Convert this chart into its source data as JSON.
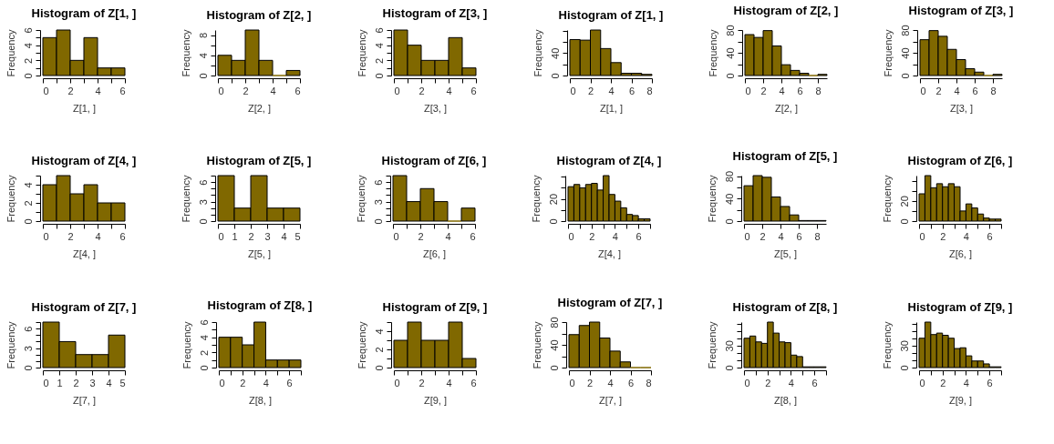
{
  "chart_data": [
    {
      "type": "histogram",
      "title": "Histogram of Z[1, ]",
      "xlabel": "Z[1, ]",
      "ylabel": "Frequency",
      "color": "#806800",
      "bins": [
        0,
        1,
        2,
        3,
        4,
        5,
        6
      ],
      "values": [
        5,
        6,
        2,
        5,
        1,
        1
      ],
      "xlim": [
        0,
        6
      ],
      "xticks": [
        0,
        {
          "value": 1,
          "label": null
        },
        2,
        {
          "value": 3,
          "label": null
        },
        4,
        {
          "value": 5,
          "label": null
        },
        6
      ],
      "ylim": [
        0,
        6
      ],
      "yticks": [
        0,
        {
          "value": 1,
          "label": null
        },
        2,
        {
          "value": 3,
          "label": null
        },
        4,
        {
          "value": 5,
          "label": null
        },
        6
      ]
    },
    {
      "type": "histogram",
      "title": "Histogram of Z[2, ]",
      "xlabel": "Z[2, ]",
      "ylabel": "Frequency",
      "color": "#806800",
      "bins": [
        0,
        1,
        2,
        3,
        4,
        5,
        6
      ],
      "values": [
        4,
        3,
        9,
        3,
        0,
        1
      ],
      "xlim": [
        0,
        6
      ],
      "xticks": [
        0,
        {
          "value": 1,
          "label": null
        },
        2,
        {
          "value": 3,
          "label": null
        },
        4,
        {
          "value": 5,
          "label": null
        },
        6
      ],
      "ylim": [
        0,
        9
      ],
      "yticks": [
        0,
        {
          "value": 2,
          "label": null
        },
        4,
        {
          "value": 6,
          "label": null
        },
        8
      ]
    },
    {
      "type": "histogram",
      "title": "Histogram of Z[3, ]",
      "xlabel": "Z[3, ]",
      "ylabel": "Frequency",
      "color": "#806800",
      "bins": [
        0,
        1,
        2,
        3,
        4,
        5,
        6
      ],
      "values": [
        6,
        4,
        2,
        2,
        5,
        1
      ],
      "xlim": [
        0,
        6
      ],
      "xticks": [
        0,
        {
          "value": 1,
          "label": null
        },
        2,
        {
          "value": 3,
          "label": null
        },
        4,
        {
          "value": 5,
          "label": null
        },
        6
      ],
      "ylim": [
        0,
        6
      ],
      "yticks": [
        0,
        {
          "value": 1,
          "label": null
        },
        2,
        {
          "value": 3,
          "label": null
        },
        4,
        {
          "value": 5,
          "label": null
        },
        6
      ]
    },
    {
      "type": "histogram",
      "title": "Histogram of Z[1, ]",
      "xlabel": "Z[1, ]",
      "ylabel": "Frequency",
      "color": "#806800",
      "bins": [
        0,
        1,
        2,
        3,
        4,
        5,
        6,
        7,
        8
      ],
      "values": [
        64,
        63,
        81,
        48,
        23,
        4,
        4,
        2
      ],
      "xlim": [
        0,
        8
      ],
      "xticks": [
        0,
        2,
        4,
        6,
        8
      ],
      "ylim": [
        0,
        81
      ],
      "yticks": [
        0,
        {
          "value": 20,
          "label": null
        },
        40,
        {
          "value": 60,
          "label": null
        },
        {
          "value": 80,
          "label": null
        }
      ]
    },
    {
      "type": "histogram",
      "title": "Histogram of Z[2, ]",
      "xlabel": "Z[2, ]",
      "ylabel": "Frequency",
      "color": "#806800",
      "bins": [
        0,
        1,
        2,
        3,
        4,
        5,
        6,
        7,
        8,
        9
      ],
      "values": [
        72,
        67,
        79,
        52,
        19,
        9,
        4,
        0,
        2
      ],
      "xlim": [
        0,
        9
      ],
      "xticks": [
        0,
        2,
        4,
        6,
        8
      ],
      "ylim": [
        0,
        80
      ],
      "yticks": [
        0,
        {
          "value": 20,
          "label": null
        },
        40,
        {
          "value": 60,
          "label": null
        },
        80
      ]
    },
    {
      "type": "histogram",
      "title": "Histogram of Z[3, ]",
      "xlabel": "Z[3, ]",
      "ylabel": "Frequency",
      "color": "#806800",
      "bins": [
        0,
        1,
        2,
        3,
        4,
        5,
        6,
        7,
        8,
        9
      ],
      "values": [
        63,
        79,
        69,
        46,
        28,
        12,
        6,
        0,
        2
      ],
      "xlim": [
        0,
        9
      ],
      "xticks": [
        0,
        2,
        4,
        6,
        8
      ],
      "ylim": [
        0,
        80
      ],
      "yticks": [
        0,
        {
          "value": 20,
          "label": null
        },
        40,
        {
          "value": 60,
          "label": null
        },
        80
      ]
    },
    {
      "type": "histogram",
      "title": "Histogram of Z[4, ]",
      "xlabel": "Z[4, ]",
      "ylabel": "Frequency",
      "color": "#806800",
      "bins": [
        0,
        1,
        2,
        3,
        4,
        5,
        6
      ],
      "values": [
        4,
        5,
        3,
        4,
        2,
        2
      ],
      "xlim": [
        0,
        6
      ],
      "xticks": [
        0,
        {
          "value": 1,
          "label": null
        },
        2,
        {
          "value": 3,
          "label": null
        },
        4,
        {
          "value": 5,
          "label": null
        },
        6
      ],
      "ylim": [
        0,
        5
      ],
      "yticks": [
        0,
        {
          "value": 1,
          "label": null
        },
        2,
        {
          "value": 3,
          "label": null
        },
        4,
        {
          "value": 5,
          "label": null
        }
      ]
    },
    {
      "type": "histogram",
      "title": "Histogram of Z[5, ]",
      "xlabel": "Z[5, ]",
      "ylabel": "Frequency",
      "color": "#806800",
      "bins": [
        0,
        1,
        2,
        3,
        4,
        5
      ],
      "values": [
        7,
        2,
        7,
        2,
        2
      ],
      "xlim": [
        0,
        5
      ],
      "xticks": [
        0,
        1,
        2,
        3,
        4,
        5
      ],
      "ylim": [
        0,
        7
      ],
      "yticks": [
        0,
        {
          "value": 1,
          "label": null
        },
        {
          "value": 2,
          "label": null
        },
        3,
        {
          "value": 4,
          "label": null
        },
        {
          "value": 5,
          "label": null
        },
        6,
        {
          "value": 7,
          "label": null
        }
      ]
    },
    {
      "type": "histogram",
      "title": "Histogram of Z[6, ]",
      "xlabel": "Z[6, ]",
      "ylabel": "Frequency",
      "color": "#806800",
      "bins": [
        0,
        1,
        2,
        3,
        4,
        5,
        6
      ],
      "values": [
        7,
        3,
        5,
        3,
        0,
        2
      ],
      "xlim": [
        0,
        6
      ],
      "xticks": [
        0,
        {
          "value": 1,
          "label": null
        },
        2,
        {
          "value": 3,
          "label": null
        },
        4,
        {
          "value": 5,
          "label": null
        },
        6
      ],
      "ylim": [
        0,
        7
      ],
      "yticks": [
        0,
        {
          "value": 1,
          "label": null
        },
        {
          "value": 2,
          "label": null
        },
        3,
        {
          "value": 4,
          "label": null
        },
        {
          "value": 5,
          "label": null
        },
        6,
        {
          "value": 7,
          "label": null
        }
      ]
    },
    {
      "type": "histogram",
      "title": "Histogram of Z[4, ]",
      "xlabel": "Z[4, ]",
      "ylabel": "Frequency",
      "color": "#806800",
      "bins": [
        0,
        0.5,
        1,
        1.5,
        2,
        2.5,
        3,
        3.5,
        4,
        4.5,
        5,
        5.5,
        6,
        6.5,
        7
      ],
      "values": [
        31,
        33,
        30,
        33,
        34,
        28,
        41,
        24,
        18,
        12,
        6,
        5,
        2,
        2
      ],
      "xlim": [
        0,
        7
      ],
      "xticks": [
        0,
        {
          "value": 1,
          "label": null
        },
        2,
        {
          "value": 3,
          "label": null
        },
        4,
        {
          "value": 5,
          "label": null
        },
        6,
        {
          "value": 7,
          "label": null
        }
      ],
      "ylim": [
        0,
        41
      ],
      "yticks": [
        0,
        {
          "value": 10,
          "label": null
        },
        20,
        {
          "value": 30,
          "label": null
        },
        {
          "value": 40,
          "label": null
        }
      ]
    },
    {
      "type": "histogram",
      "title": "Histogram of Z[5, ]",
      "xlabel": "Z[5, ]",
      "ylabel": "Frequency",
      "color": "#806800",
      "bins": [
        0,
        1,
        2,
        3,
        4,
        5,
        6,
        7,
        8,
        9
      ],
      "values": [
        63,
        81,
        78,
        43,
        26,
        11,
        1,
        1,
        1
      ],
      "xlim": [
        0,
        9
      ],
      "xticks": [
        0,
        2,
        4,
        6,
        8
      ],
      "ylim": [
        0,
        81
      ],
      "yticks": [
        0,
        {
          "value": 20,
          "label": null
        },
        40,
        {
          "value": 60,
          "label": null
        },
        80
      ]
    },
    {
      "type": "histogram",
      "title": "Histogram of Z[6, ]",
      "xlabel": "Z[6, ]",
      "ylabel": "Frequency",
      "color": "#806800",
      "bins": [
        0,
        0.5,
        1,
        1.5,
        2,
        2.5,
        3,
        3.5,
        4,
        4.5,
        5,
        5.5,
        6,
        6.5,
        7
      ],
      "values": [
        27,
        45,
        33,
        37,
        34,
        37,
        34,
        10,
        17,
        13,
        7,
        3,
        2,
        2
      ],
      "xlim": [
        0,
        7
      ],
      "xticks": [
        0,
        {
          "value": 1,
          "label": null
        },
        2,
        {
          "value": 3,
          "label": null
        },
        4,
        {
          "value": 5,
          "label": null
        },
        6,
        {
          "value": 7,
          "label": null
        }
      ],
      "ylim": [
        0,
        45
      ],
      "yticks": [
        0,
        {
          "value": 10,
          "label": null
        },
        20,
        {
          "value": 30,
          "label": null
        },
        {
          "value": 40,
          "label": null
        }
      ]
    },
    {
      "type": "histogram",
      "title": "Histogram of Z[7, ]",
      "xlabel": "Z[7, ]",
      "ylabel": "Frequency",
      "color": "#806800",
      "bins": [
        0,
        1,
        2,
        3,
        4,
        5
      ],
      "values": [
        7,
        4,
        2,
        2,
        5
      ],
      "xlim": [
        0,
        5
      ],
      "xticks": [
        0,
        1,
        2,
        3,
        4,
        5
      ],
      "ylim": [
        0,
        7
      ],
      "yticks": [
        0,
        {
          "value": 1,
          "label": null
        },
        {
          "value": 2,
          "label": null
        },
        3,
        {
          "value": 4,
          "label": null
        },
        {
          "value": 5,
          "label": null
        },
        6,
        {
          "value": 7,
          "label": null
        }
      ]
    },
    {
      "type": "histogram",
      "title": "Histogram of Z[8, ]",
      "xlabel": "Z[8, ]",
      "ylabel": "Frequency",
      "color": "#806800",
      "bins": [
        0,
        1,
        2,
        3,
        4,
        5,
        6,
        7
      ],
      "values": [
        4,
        4,
        3,
        6,
        1,
        1,
        1
      ],
      "xlim": [
        0,
        7
      ],
      "xticks": [
        0,
        {
          "value": 1,
          "label": null
        },
        2,
        {
          "value": 3,
          "label": null
        },
        4,
        {
          "value": 5,
          "label": null
        },
        6,
        {
          "value": 7,
          "label": null
        }
      ],
      "ylim": [
        0,
        6
      ],
      "yticks": [
        0,
        {
          "value": 1,
          "label": null
        },
        2,
        {
          "value": 3,
          "label": null
        },
        4,
        {
          "value": 5,
          "label": null
        },
        6
      ]
    },
    {
      "type": "histogram",
      "title": "Histogram of Z[9, ]",
      "xlabel": "Z[9, ]",
      "ylabel": "Frequency",
      "color": "#806800",
      "bins": [
        0,
        1,
        2,
        3,
        4,
        5,
        6
      ],
      "values": [
        3,
        5,
        3,
        3,
        5,
        1
      ],
      "xlim": [
        0,
        6
      ],
      "xticks": [
        0,
        {
          "value": 1,
          "label": null
        },
        2,
        {
          "value": 3,
          "label": null
        },
        4,
        {
          "value": 5,
          "label": null
        },
        6
      ],
      "ylim": [
        0,
        5
      ],
      "yticks": [
        0,
        {
          "value": 1,
          "label": null
        },
        2,
        {
          "value": 3,
          "label": null
        },
        4,
        {
          "value": 5,
          "label": null
        }
      ]
    },
    {
      "type": "histogram",
      "title": "Histogram of Z[7, ]",
      "xlabel": "Z[7, ]",
      "ylabel": "Frequency",
      "color": "#806800",
      "bins": [
        0,
        1,
        2,
        3,
        4,
        5,
        6,
        7,
        8
      ],
      "values": [
        58,
        74,
        80,
        52,
        29,
        10,
        0,
        0
      ],
      "xlim": [
        0,
        8
      ],
      "xticks": [
        0,
        2,
        4,
        6,
        8
      ],
      "ylim": [
        0,
        80
      ],
      "yticks": [
        0,
        {
          "value": 20,
          "label": null
        },
        40,
        {
          "value": 60,
          "label": null
        },
        80
      ]
    },
    {
      "type": "histogram",
      "title": "Histogram of Z[8, ]",
      "xlabel": "Z[8, ]",
      "ylabel": "Frequency",
      "color": "#806800",
      "bins": [
        0,
        0.5,
        1,
        1.5,
        2,
        2.5,
        3,
        3.5,
        4,
        4.5,
        5,
        5.5,
        6,
        6.5,
        7
      ],
      "values": [
        40,
        43,
        35,
        33,
        62,
        47,
        35,
        34,
        17,
        15,
        1,
        1,
        1,
        1
      ],
      "xlim": [
        0,
        7
      ],
      "xticks": [
        0,
        {
          "value": 1,
          "label": null
        },
        2,
        {
          "value": 3,
          "label": null
        },
        4,
        {
          "value": 5,
          "label": null
        },
        6,
        {
          "value": 7,
          "label": null
        }
      ],
      "ylim": [
        0,
        62
      ],
      "yticks": [
        0,
        {
          "value": 10,
          "label": null
        },
        {
          "value": 20,
          "label": null
        },
        30,
        {
          "value": 40,
          "label": null
        },
        {
          "value": 50,
          "label": null
        },
        {
          "value": 60,
          "label": null
        }
      ]
    },
    {
      "type": "histogram",
      "title": "Histogram of Z[9, ]",
      "xlabel": "Z[9, ]",
      "ylabel": "Frequency",
      "color": "#806800",
      "bins": [
        0,
        0.5,
        1,
        1.5,
        2,
        2.5,
        3,
        3.5,
        4,
        4.5,
        5,
        5.5,
        6,
        6.5,
        7
      ],
      "values": [
        40,
        62,
        45,
        47,
        44,
        40,
        26,
        27,
        16,
        9,
        9,
        5,
        1,
        1
      ],
      "xlim": [
        0,
        7
      ],
      "xticks": [
        0,
        {
          "value": 1,
          "label": null
        },
        2,
        {
          "value": 3,
          "label": null
        },
        4,
        {
          "value": 5,
          "label": null
        },
        6,
        {
          "value": 7,
          "label": null
        }
      ],
      "ylim": [
        0,
        62
      ],
      "yticks": [
        0,
        {
          "value": 10,
          "label": null
        },
        {
          "value": 20,
          "label": null
        },
        30,
        {
          "value": 40,
          "label": null
        },
        {
          "value": 50,
          "label": null
        },
        {
          "value": 60,
          "label": null
        }
      ]
    }
  ]
}
